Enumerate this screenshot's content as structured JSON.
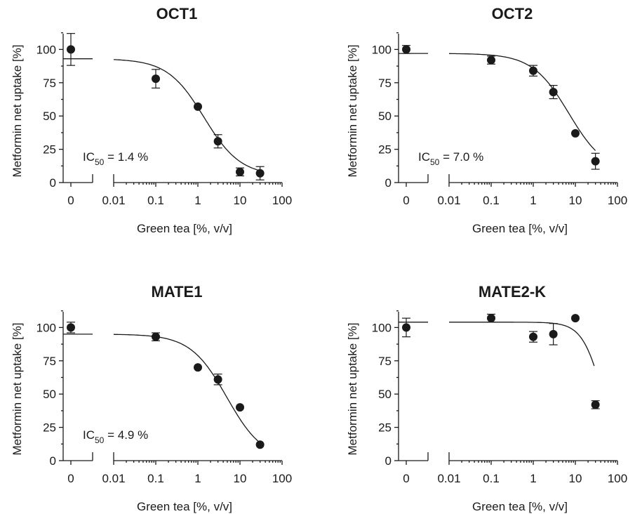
{
  "chart_data": [
    {
      "type": "scatter",
      "title": "OCT1",
      "xlabel": "Green tea [%, v/v]",
      "ylabel": "Metformin net uptake [%]",
      "x_scale": "log",
      "xlim": [
        0.01,
        100
      ],
      "ylim": [
        0,
        120
      ],
      "yticks": [
        "0",
        "25",
        "50",
        "75",
        "100"
      ],
      "xticks": [
        "0",
        "0.01",
        "0.1",
        "1",
        "10",
        "100"
      ],
      "ic50_prefix": "IC",
      "ic50_sub": "50",
      "ic50_suffix": " = 1.4 %",
      "control": {
        "x": "0",
        "y": 100,
        "err": 12
      },
      "points": [
        {
          "x": 0.1,
          "y": 78,
          "err": 7
        },
        {
          "x": 1,
          "y": 57,
          "err": 0
        },
        {
          "x": 3,
          "y": 31,
          "err": 5
        },
        {
          "x": 10,
          "y": 8,
          "err": 3
        },
        {
          "x": 30,
          "y": 7,
          "err": 5
        }
      ],
      "fit": {
        "top": 93,
        "bottom": 5,
        "ic50": 1.4,
        "hill": 1.0,
        "xmin": 0.01,
        "xmax": 30
      }
    },
    {
      "type": "scatter",
      "title": "OCT2",
      "xlabel": "Green tea [%, v/v]",
      "ylabel": "Metformin net uptake [%]",
      "x_scale": "log",
      "xlim": [
        0.01,
        100
      ],
      "ylim": [
        0,
        120
      ],
      "yticks": [
        "0",
        "25",
        "50",
        "75",
        "100"
      ],
      "xticks": [
        "0",
        "0.01",
        "0.1",
        "1",
        "10",
        "100"
      ],
      "ic50_prefix": "IC",
      "ic50_sub": "50",
      "ic50_suffix": " = 7.0 %",
      "control": {
        "x": "0",
        "y": 100,
        "err": 3
      },
      "points": [
        {
          "x": 0.1,
          "y": 92,
          "err": 3
        },
        {
          "x": 1,
          "y": 84,
          "err": 4
        },
        {
          "x": 3,
          "y": 68,
          "err": 5
        },
        {
          "x": 10,
          "y": 37,
          "err": 0
        },
        {
          "x": 30,
          "y": 16,
          "err": 6
        }
      ],
      "fit": {
        "top": 97,
        "bottom": 7,
        "ic50": 7.0,
        "hill": 1.0,
        "xmin": 0.01,
        "xmax": 30
      }
    },
    {
      "type": "scatter",
      "title": "MATE1",
      "xlabel": "Green tea [%, v/v]",
      "ylabel": "Metformin net uptake [%]",
      "x_scale": "log",
      "xlim": [
        0.01,
        100
      ],
      "ylim": [
        0,
        120
      ],
      "yticks": [
        "0",
        "25",
        "50",
        "75",
        "100"
      ],
      "xticks": [
        "0",
        "0.01",
        "0.1",
        "1",
        "10",
        "100"
      ],
      "ic50_prefix": "IC",
      "ic50_sub": "50",
      "ic50_suffix": " = 4.9 %",
      "control": {
        "x": "0",
        "y": 100,
        "err": 4
      },
      "points": [
        {
          "x": 0.1,
          "y": 93,
          "err": 3
        },
        {
          "x": 1,
          "y": 70,
          "err": 0
        },
        {
          "x": 3,
          "y": 61,
          "err": 4
        },
        {
          "x": 10,
          "y": 40,
          "err": 0
        },
        {
          "x": 30,
          "y": 12,
          "err": 0
        }
      ],
      "fit": {
        "top": 95,
        "bottom": 0,
        "ic50": 4.9,
        "hill": 1.0,
        "xmin": 0.01,
        "xmax": 30
      }
    },
    {
      "type": "scatter",
      "title": "MATE2-K",
      "xlabel": "Green tea [%, v/v]",
      "ylabel": "Metformin net uptake [%]",
      "x_scale": "log",
      "xlim": [
        0.01,
        100
      ],
      "ylim": [
        0,
        120
      ],
      "yticks": [
        "0",
        "25",
        "50",
        "75",
        "100"
      ],
      "xticks": [
        "0",
        "0.01",
        "0.1",
        "1",
        "10",
        "100"
      ],
      "ic50_prefix": "",
      "ic50_sub": "",
      "ic50_suffix": "",
      "control": {
        "x": "0",
        "y": 100,
        "err": 7
      },
      "points": [
        {
          "x": 0.1,
          "y": 107,
          "err": 3
        },
        {
          "x": 1,
          "y": 93,
          "err": 4
        },
        {
          "x": 3,
          "y": 95,
          "err": 8
        },
        {
          "x": 10,
          "y": 107,
          "err": 0
        },
        {
          "x": 30,
          "y": 42,
          "err": 3
        }
      ],
      "fit": {
        "top": 104,
        "bottom": 0,
        "ic50": 43,
        "hill": 1.8,
        "xmin": 0.01,
        "xmax": 28
      }
    }
  ]
}
